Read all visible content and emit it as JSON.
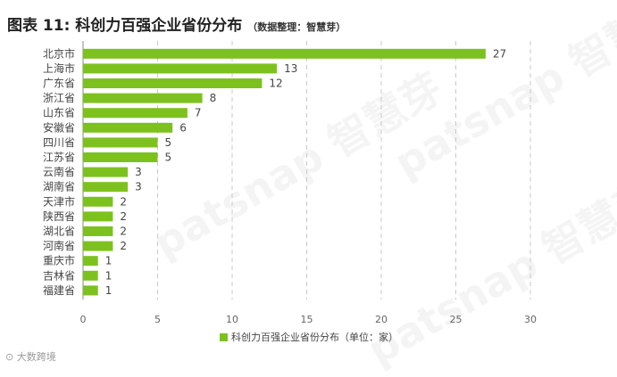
{
  "title": "图表 11: 科创力百强企业省份分布",
  "source": "（数据整理：智慧芽）",
  "watermark": "patsnap 智慧芽",
  "credit": "大数跨境",
  "colors": {
    "bar": "#7dc11f",
    "grid": "#c8c8c8",
    "axis": "#888888",
    "text": "#444444"
  },
  "chart_data": {
    "type": "bar",
    "orientation": "horizontal",
    "categories": [
      "北京市",
      "上海市",
      "广东省",
      "浙江省",
      "山东省",
      "安徽省",
      "四川省",
      "江苏省",
      "云南省",
      "湖南省",
      "天津市",
      "陕西省",
      "湖北省",
      "河南省",
      "重庆市",
      "吉林省",
      "福建省"
    ],
    "series": [
      {
        "name": "科创力百强企业省份分布（单位：家）",
        "values": [
          27,
          13,
          12,
          8,
          7,
          6,
          5,
          5,
          3,
          3,
          2,
          2,
          2,
          2,
          1,
          1,
          1
        ]
      }
    ],
    "xlim": [
      0,
      30
    ],
    "xticks": [
      "0",
      "5",
      "10",
      "15",
      "20",
      "25",
      "30"
    ],
    "grid": "vertical-dashed",
    "legend": "bottom"
  }
}
